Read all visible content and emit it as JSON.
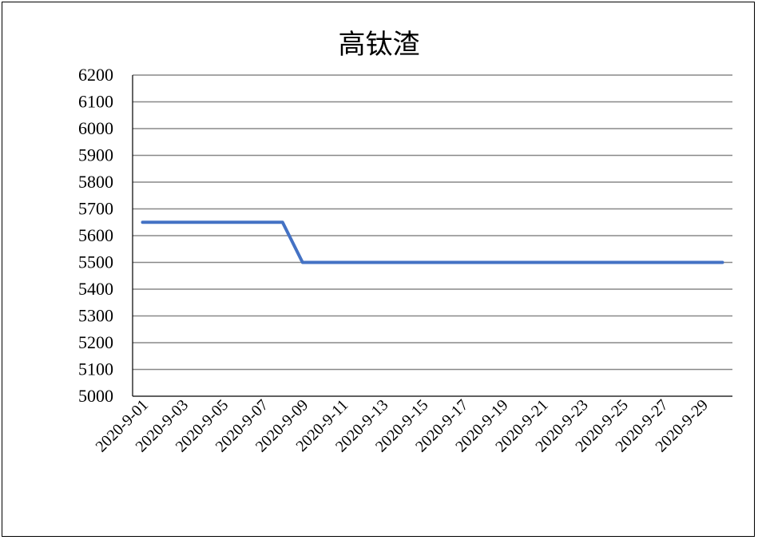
{
  "chart_data": {
    "type": "line",
    "title": "高钛渣",
    "xlabel": "",
    "ylabel": "",
    "ylim": [
      5000,
      6200
    ],
    "ytick_step": 100,
    "grid": true,
    "legend": "none",
    "x": [
      "2020-9-01",
      "2020-9-02",
      "2020-9-03",
      "2020-9-04",
      "2020-9-05",
      "2020-9-06",
      "2020-9-07",
      "2020-9-08",
      "2020-9-09",
      "2020-9-10",
      "2020-9-11",
      "2020-9-12",
      "2020-9-13",
      "2020-9-14",
      "2020-9-15",
      "2020-9-16",
      "2020-9-17",
      "2020-9-18",
      "2020-9-19",
      "2020-9-20",
      "2020-9-21",
      "2020-9-22",
      "2020-9-23",
      "2020-9-24",
      "2020-9-25",
      "2020-9-26",
      "2020-9-27",
      "2020-9-28",
      "2020-9-29",
      "2020-9-30"
    ],
    "x_tick_labels": [
      "2020-9-01",
      "2020-9-03",
      "2020-9-05",
      "2020-9-07",
      "2020-9-09",
      "2020-9-11",
      "2020-9-13",
      "2020-9-15",
      "2020-9-17",
      "2020-9-19",
      "2020-9-21",
      "2020-9-23",
      "2020-9-25",
      "2020-9-27",
      "2020-9-29"
    ],
    "series": [
      {
        "values": [
          5650,
          5650,
          5650,
          5650,
          5650,
          5650,
          5650,
          5650,
          5500,
          5500,
          5500,
          5500,
          5500,
          5500,
          5500,
          5500,
          5500,
          5500,
          5500,
          5500,
          5500,
          5500,
          5500,
          5500,
          5500,
          5500,
          5500,
          5500,
          5500,
          5500
        ],
        "color": "#4472C4"
      }
    ]
  }
}
